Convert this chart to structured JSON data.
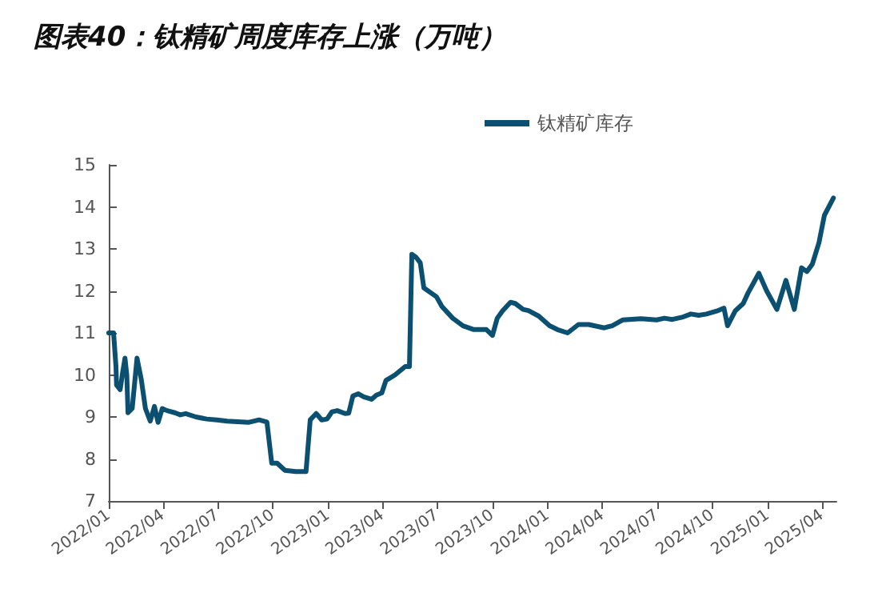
{
  "chart_data": {
    "type": "line",
    "title": "图表40：钛精矿周度库存上涨（万吨）",
    "x": [
      "2022-01-01",
      "2022-01-09",
      "2022-01-13",
      "2022-01-14",
      "2022-01-20",
      "2022-01-24",
      "2022-01-28",
      "2022-01-31",
      "2022-02-02",
      "2022-02-09",
      "2022-02-17",
      "2022-02-24",
      "2022-03-03",
      "2022-03-11",
      "2022-03-18",
      "2022-03-24",
      "2022-03-31",
      "2022-04-08",
      "2022-04-21",
      "2022-04-30",
      "2022-05-09",
      "2022-05-26",
      "2022-06-13",
      "2022-06-30",
      "2022-07-17",
      "2022-08-21",
      "2022-09-08",
      "2022-09-21",
      "2022-09-29",
      "2022-10-08",
      "2022-10-21",
      "2022-11-08",
      "2022-11-25",
      "2022-12-02",
      "2022-12-12",
      "2022-12-21",
      "2022-12-30",
      "2023-01-07",
      "2023-01-16",
      "2023-01-29",
      "2023-02-04",
      "2023-02-11",
      "2023-02-20",
      "2023-03-01",
      "2023-03-14",
      "2023-03-22",
      "2023-03-31",
      "2023-04-07",
      "2023-04-22",
      "2023-05-09",
      "2023-05-16",
      "2023-05-20",
      "2023-05-27",
      "2023-06-03",
      "2023-06-09",
      "2023-06-30",
      "2023-07-09",
      "2023-07-27",
      "2023-08-13",
      "2023-08-31",
      "2023-09-13",
      "2023-09-21",
      "2023-10-01",
      "2023-10-09",
      "2023-10-18",
      "2023-10-31",
      "2023-11-08",
      "2023-11-21",
      "2023-11-30",
      "2023-12-17",
      "2024-01-04",
      "2024-01-17",
      "2024-02-03",
      "2024-02-21",
      "2024-03-09",
      "2024-04-04",
      "2024-04-17",
      "2024-05-05",
      "2024-06-04",
      "2024-06-30",
      "2024-07-13",
      "2024-07-26",
      "2024-08-13",
      "2024-08-26",
      "2024-09-08",
      "2024-09-21",
      "2024-10-08",
      "2024-10-20",
      "2024-10-26",
      "2024-11-08",
      "2024-11-21",
      "2024-11-29",
      "2024-12-17",
      "2024-12-30",
      "2025-01-16",
      "2025-01-31",
      "2025-02-14",
      "2025-02-26",
      "2025-03-07",
      "2025-03-16",
      "2025-03-27",
      "2025-04-05",
      "2025-04-20"
    ],
    "series": [
      {
        "name": "钛精矿库存",
        "color": "#0b4f71",
        "values": [
          11.0,
          11.0,
          10.2,
          9.76,
          9.65,
          10.05,
          10.4,
          10.0,
          9.1,
          9.2,
          10.4,
          9.9,
          9.2,
          8.9,
          9.25,
          8.87,
          9.2,
          9.15,
          9.1,
          9.05,
          9.08,
          9.0,
          8.95,
          8.93,
          8.9,
          8.87,
          8.93,
          8.88,
          7.9,
          7.9,
          7.73,
          7.7,
          7.7,
          8.93,
          9.08,
          8.93,
          8.95,
          9.12,
          9.15,
          9.08,
          9.09,
          9.5,
          9.55,
          9.48,
          9.42,
          9.52,
          9.57,
          9.87,
          10.0,
          10.2,
          10.2,
          12.87,
          12.8,
          12.67,
          12.07,
          11.86,
          11.63,
          11.35,
          11.17,
          11.08,
          11.08,
          11.08,
          10.94,
          11.35,
          11.53,
          11.73,
          11.7,
          11.56,
          11.53,
          11.4,
          11.17,
          11.08,
          11.0,
          11.2,
          11.2,
          11.12,
          11.17,
          11.31,
          11.34,
          11.31,
          11.35,
          11.32,
          11.38,
          11.45,
          11.42,
          11.45,
          11.52,
          11.59,
          11.17,
          11.53,
          11.7,
          11.95,
          12.42,
          12.0,
          11.56,
          12.25,
          11.56,
          12.55,
          12.46,
          12.64,
          13.15,
          13.8,
          14.21
        ]
      }
    ],
    "xlim": [
      "2022-01-01",
      "2025-04-25"
    ],
    "xticks": [
      {
        "value": "2022-01-01",
        "label": "2022/01"
      },
      {
        "value": "2022-04-01",
        "label": "2022/04"
      },
      {
        "value": "2022-07-01",
        "label": "2022/07"
      },
      {
        "value": "2022-10-01",
        "label": "2022/10"
      },
      {
        "value": "2023-01-01",
        "label": "2023/01"
      },
      {
        "value": "2023-04-01",
        "label": "2023/04"
      },
      {
        "value": "2023-07-01",
        "label": "2023/07"
      },
      {
        "value": "2023-10-01",
        "label": "2023/10"
      },
      {
        "value": "2024-01-01",
        "label": "2024/01"
      },
      {
        "value": "2024-04-01",
        "label": "2024/04"
      },
      {
        "value": "2024-07-01",
        "label": "2024/07"
      },
      {
        "value": "2024-10-01",
        "label": "2024/10"
      },
      {
        "value": "2025-01-01",
        "label": "2025/01"
      },
      {
        "value": "2025-04-01",
        "label": "2025/04"
      }
    ],
    "ylim": [
      7,
      15
    ],
    "yticks": [
      7,
      8,
      9,
      10,
      11,
      12,
      13,
      14,
      15
    ],
    "legend": "top right",
    "grid": false,
    "marker": "none",
    "line_style": "solid"
  }
}
